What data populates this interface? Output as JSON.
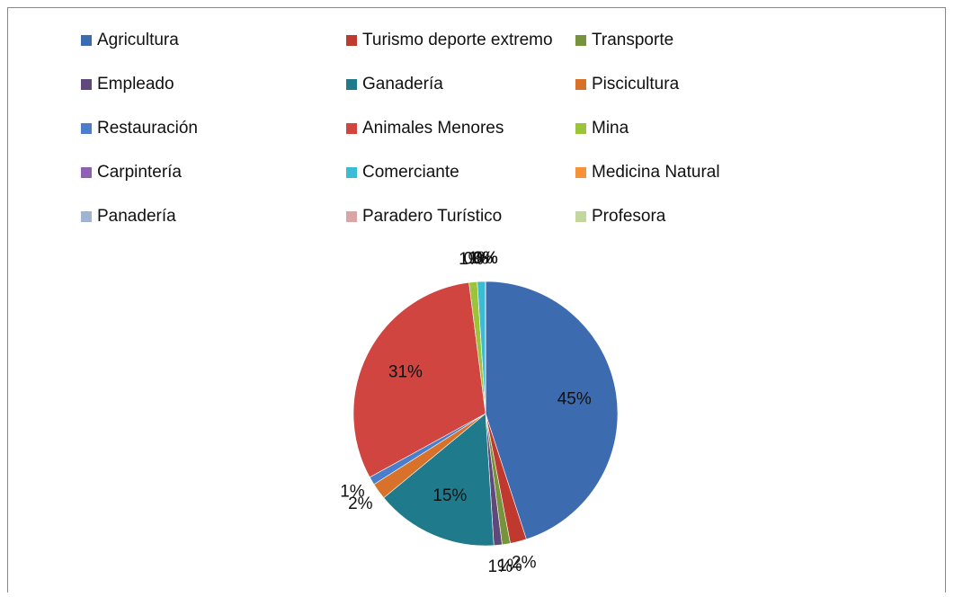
{
  "chart_data": {
    "type": "pie",
    "categories": [
      "Agricultura",
      "Turismo deporte extremo",
      "Transporte",
      "Empleado",
      "Ganadería",
      "Piscicultura",
      "Restauración",
      "Animales Menores",
      "Mina",
      "Carpintería",
      "Comerciante",
      "Medicina Natural",
      "Panadería",
      "Paradero Turístico",
      "Profesora"
    ],
    "values": [
      45,
      2,
      1,
      1,
      15,
      2,
      1,
      31,
      1,
      0,
      1,
      0,
      0,
      0,
      0
    ],
    "value_labels": [
      "45%",
      "2%",
      "1%",
      "1%",
      "15%",
      "2%",
      "1%",
      "31%",
      "1%",
      "0%",
      "1%",
      "0%",
      "0%",
      "0%",
      "0%"
    ],
    "colors": [
      "#3d6bb0",
      "#c0392f",
      "#77933c",
      "#60497a",
      "#1f7b8c",
      "#d8712a",
      "#4a7ecb",
      "#d0453f",
      "#9bc43a",
      "#8e5fb5",
      "#3cbcd4",
      "#f7913a",
      "#9fb3d3",
      "#d9a6a5",
      "#c3d69b"
    ],
    "legend": "top"
  }
}
